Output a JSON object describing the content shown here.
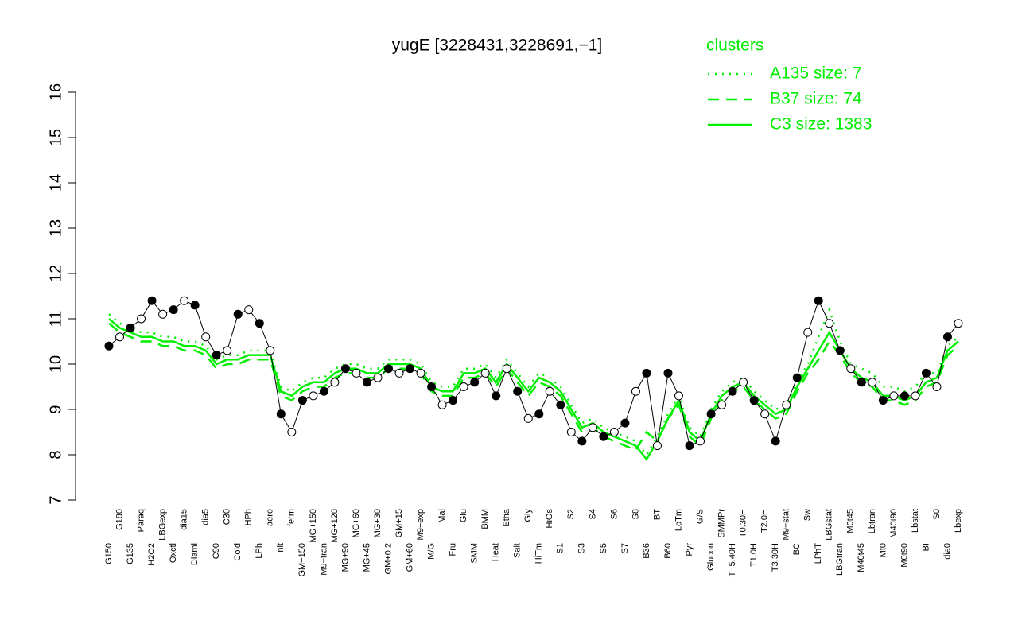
{
  "chart_data": {
    "type": "line",
    "title": "yugE [3228431,3228691,−1]",
    "legend_title": "clusters",
    "legend_position": "top-right",
    "ylim": [
      7,
      16
    ],
    "yticks": [
      7,
      8,
      9,
      10,
      11,
      12,
      13,
      14,
      15,
      16
    ],
    "categories": [
      "G150",
      "G180",
      "G135",
      "Paraq",
      "H2O2",
      "LBGexp",
      "Oxctl",
      "dia15",
      "Diami",
      "dia5",
      "C90",
      "C30",
      "Cold",
      "HPh",
      "LPh",
      "aero",
      "nit",
      "ferm",
      "GM+150",
      "MG+150",
      "M9−tran",
      "MG+120",
      "MG+90",
      "MG+60",
      "MG+45",
      "MG+30",
      "GM+0.2",
      "GM+15",
      "GM+60",
      "M9−exp",
      "M/G",
      "Mal",
      "Fru",
      "Glu",
      "SMM",
      "BMM",
      "Heat",
      "Etha",
      "Salt",
      "Gly",
      "HiTm",
      "HiOs",
      "S1",
      "S2",
      "S3",
      "S4",
      "S5",
      "S6",
      "S7",
      "S8",
      "B36",
      "BT",
      "B60",
      "LoTm",
      "Pyr",
      "G/S",
      "Glucon",
      "SMMPr",
      "T−5.40H",
      "T0.30H",
      "T1.0H",
      "T2.0H",
      "T3.30H",
      "M9−stat",
      "BC",
      "Sw",
      "LPhT",
      "LBGstat",
      "LBGtran",
      "M0t45",
      "M40t45",
      "Lbtran",
      "Mt0",
      "M40t90",
      "M0t90",
      "Lbstat",
      "BI",
      "S0",
      "dia0",
      "Lbexp"
    ],
    "points": {
      "color": "#000000",
      "values": [
        10.4,
        10.6,
        10.8,
        11.0,
        11.4,
        11.1,
        11.2,
        11.4,
        11.3,
        10.6,
        10.2,
        10.3,
        11.1,
        11.2,
        10.9,
        10.3,
        8.9,
        8.5,
        9.2,
        9.3,
        9.4,
        9.6,
        9.9,
        9.8,
        9.6,
        9.7,
        9.9,
        9.8,
        9.9,
        9.8,
        9.5,
        9.1,
        9.2,
        9.5,
        9.6,
        9.8,
        9.3,
        9.9,
        9.4,
        8.8,
        8.9,
        9.4,
        9.1,
        8.5,
        8.3,
        8.6,
        8.4,
        8.5,
        8.7,
        9.4,
        9.8,
        8.2,
        9.8,
        9.3,
        8.2,
        8.3,
        8.9,
        9.1,
        9.4,
        9.6,
        9.2,
        8.9,
        8.3,
        9.1,
        9.7,
        10.7,
        11.4,
        10.9,
        10.3,
        9.9,
        9.6,
        9.6,
        9.2,
        9.3,
        9.3,
        9.3,
        9.8,
        9.5,
        10.6,
        10.9
      ]
    },
    "series": [
      {
        "name": "A135 size: 7",
        "color": "#00ee00",
        "dash": "dotted",
        "values": [
          11.1,
          10.9,
          10.8,
          10.7,
          10.7,
          10.6,
          10.6,
          10.5,
          10.5,
          10.4,
          10.1,
          10.2,
          10.2,
          10.3,
          10.3,
          10.3,
          9.5,
          9.4,
          9.6,
          9.7,
          9.7,
          9.9,
          10.0,
          10.0,
          9.9,
          9.9,
          10.1,
          10.1,
          10.1,
          10.0,
          9.6,
          9.5,
          9.5,
          9.9,
          9.9,
          10.0,
          9.7,
          10.1,
          9.8,
          9.5,
          9.8,
          9.7,
          9.5,
          9.1,
          8.7,
          8.8,
          8.6,
          8.5,
          8.4,
          8.3,
          8.0,
          8.4,
          8.9,
          9.3,
          8.6,
          8.4,
          9.0,
          9.4,
          9.6,
          9.7,
          9.4,
          9.2,
          9.0,
          9.1,
          9.6,
          10.0,
          10.6,
          11.2,
          10.5,
          10.0,
          9.9,
          9.8,
          9.5,
          9.5,
          9.4,
          9.5,
          9.8,
          9.8,
          10.4,
          10.6
        ]
      },
      {
        "name": "B37 size: 74",
        "color": "#00ee00",
        "dash": "dashed",
        "values": [
          10.9,
          10.7,
          10.6,
          10.5,
          10.5,
          10.4,
          10.4,
          10.3,
          10.3,
          10.2,
          9.9,
          10.0,
          10.0,
          10.1,
          10.1,
          10.1,
          9.3,
          9.2,
          9.4,
          9.5,
          9.5,
          9.7,
          9.8,
          9.8,
          9.7,
          9.7,
          9.9,
          9.9,
          9.9,
          9.8,
          9.4,
          9.3,
          9.3,
          9.7,
          9.7,
          9.8,
          9.5,
          9.9,
          9.6,
          9.3,
          9.6,
          9.5,
          9.3,
          8.9,
          8.5,
          8.6,
          8.4,
          8.3,
          8.2,
          8.1,
          8.5,
          8.3,
          8.8,
          9.1,
          8.4,
          8.2,
          8.8,
          9.2,
          9.4,
          9.5,
          9.2,
          9.0,
          8.8,
          8.9,
          9.4,
          9.8,
          10.1,
          10.5,
          10.2,
          9.8,
          9.6,
          9.5,
          9.2,
          9.2,
          9.1,
          9.2,
          9.5,
          9.6,
          10.2,
          10.4
        ]
      },
      {
        "name": "C3 size: 1383",
        "color": "#00ee00",
        "dash": "solid",
        "values": [
          11.0,
          10.8,
          10.7,
          10.6,
          10.6,
          10.5,
          10.5,
          10.4,
          10.4,
          10.3,
          10.0,
          10.1,
          10.1,
          10.2,
          10.2,
          10.2,
          9.4,
          9.3,
          9.5,
          9.6,
          9.6,
          9.8,
          9.9,
          9.9,
          9.8,
          9.8,
          10.0,
          10.0,
          10.0,
          9.9,
          9.5,
          9.4,
          9.4,
          9.8,
          9.8,
          9.9,
          9.6,
          10.0,
          9.7,
          9.4,
          9.7,
          9.6,
          9.4,
          9.0,
          8.6,
          8.7,
          8.5,
          8.4,
          8.3,
          8.2,
          7.9,
          8.3,
          8.8,
          9.2,
          8.5,
          8.3,
          8.9,
          9.3,
          9.5,
          9.6,
          9.3,
          9.1,
          8.9,
          9.0,
          9.5,
          9.9,
          10.3,
          10.7,
          10.3,
          9.9,
          9.7,
          9.6,
          9.3,
          9.3,
          9.2,
          9.3,
          9.6,
          9.7,
          10.3,
          10.5
        ]
      }
    ]
  }
}
